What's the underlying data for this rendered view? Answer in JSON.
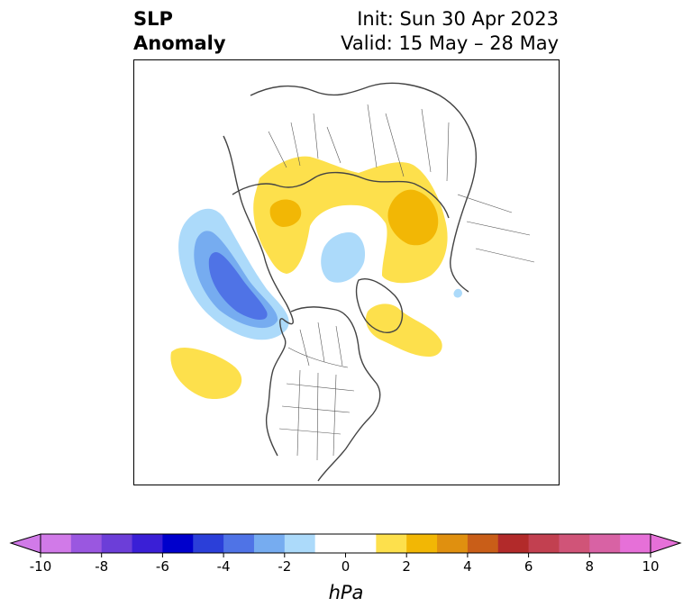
{
  "title": {
    "left_line1": "SLP",
    "left_line2": "Anomaly",
    "init": "Init: Sun 30 Apr 2023",
    "valid": "Valid: 15 May – 28 May"
  },
  "colorbar": {
    "unit": "hPa",
    "range": [
      -10,
      10
    ],
    "extend": "both",
    "ticks": [
      "-10",
      "-8",
      "-6",
      "-4",
      "-2",
      "0",
      "2",
      "4",
      "6",
      "8",
      "10"
    ],
    "colors": [
      "#d17ae8",
      "#9a57e0",
      "#6c3ed8",
      "#3a1fd6",
      "#0000cc",
      "#2b3fd9",
      "#4f73e6",
      "#76acf0",
      "#acdafa",
      "#ffffff",
      "#ffffff",
      "#fde04c",
      "#f2b705",
      "#e0900f",
      "#c95e18",
      "#b22a2a",
      "#c24050",
      "#d05478",
      "#d862a4",
      "#e670d8"
    ]
  },
  "map": {
    "projection": "polar stereographic",
    "colors": {
      "border": "#444444",
      "neg_light": "#acdafa",
      "neg_mid": "#76acf0",
      "neg_dark": "#4f73e6",
      "pos_light": "#fde04c",
      "pos_mid": "#f2b705"
    }
  }
}
